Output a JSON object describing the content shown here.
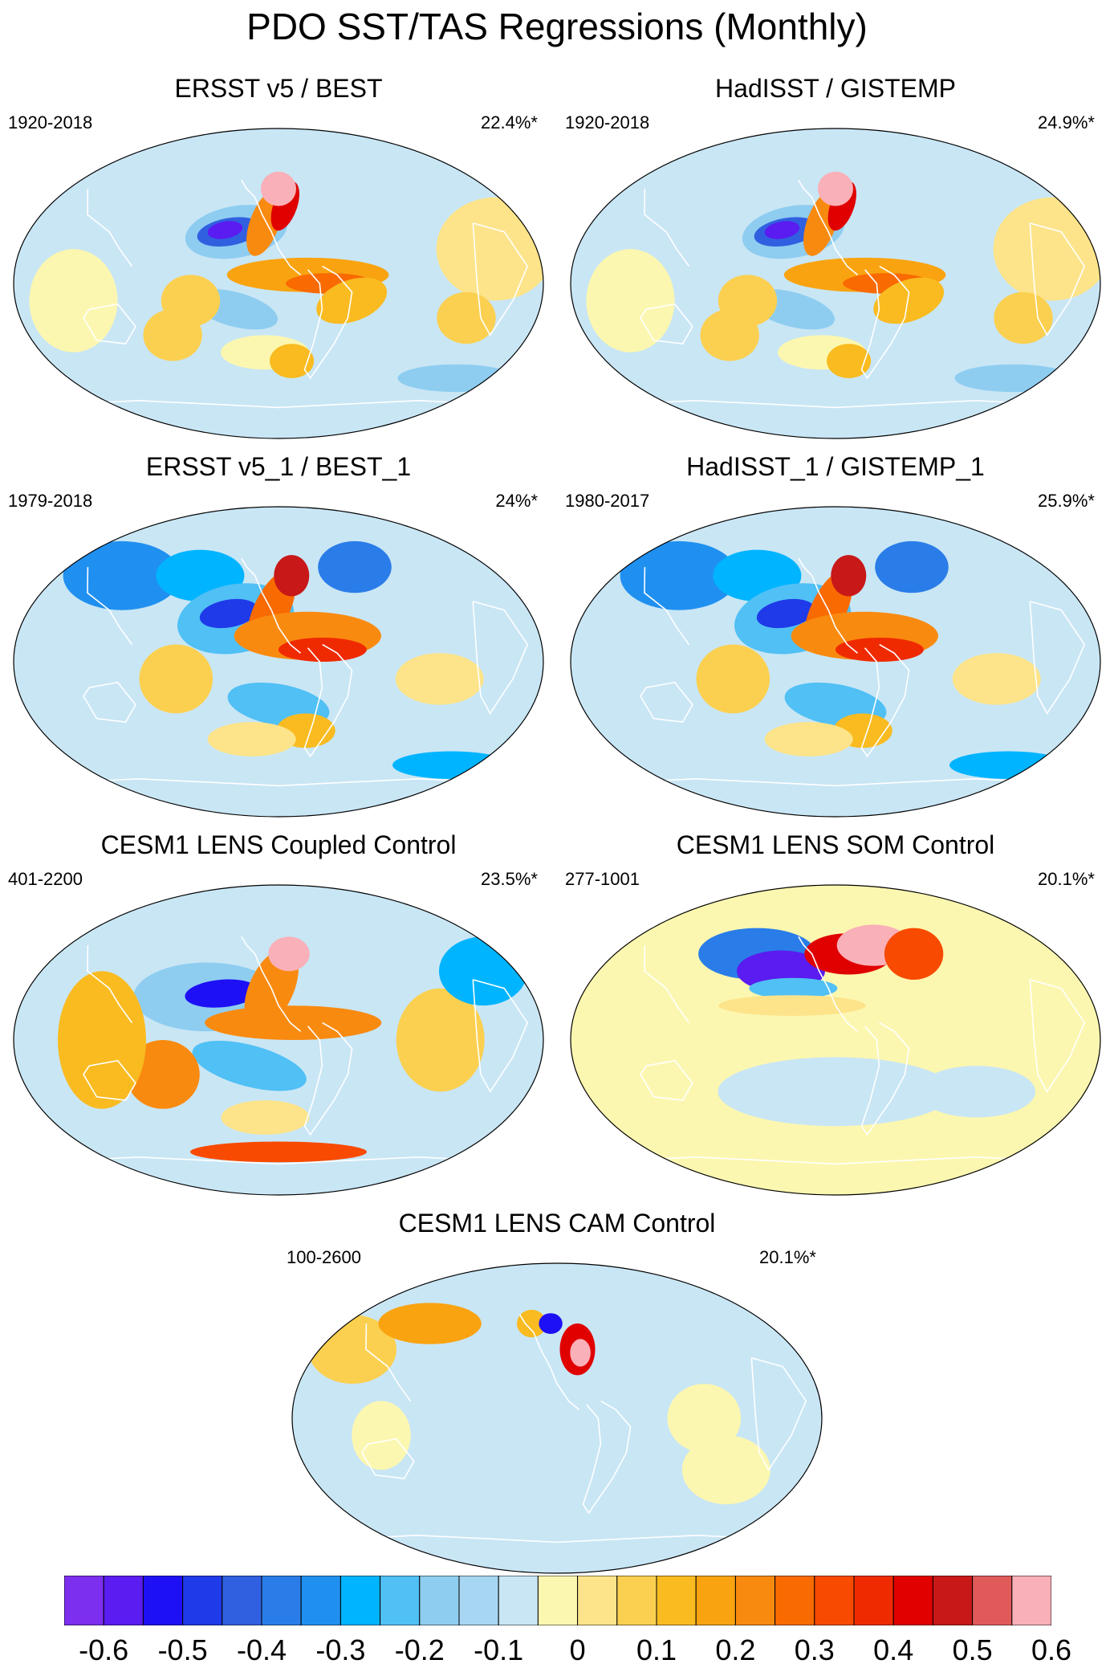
{
  "title": "PDO SST/TAS Regressions (Monthly)",
  "panels": [
    {
      "id": "p1",
      "title": "ERSST v5 / BEST",
      "years": "1920-2018",
      "percent": "22.4%*",
      "pattern": "observed"
    },
    {
      "id": "p2",
      "title": "HadISST / GISTEMP",
      "years": "1920-2018",
      "percent": "24.9%*",
      "pattern": "observed"
    },
    {
      "id": "p3",
      "title": "ERSST v5_1 / BEST_1",
      "years": "1979-2018",
      "percent": "24%*",
      "pattern": "recent"
    },
    {
      "id": "p4",
      "title": "HadISST_1 / GISTEMP_1",
      "years": "1980-2017",
      "percent": "25.9%*",
      "pattern": "recent"
    },
    {
      "id": "p5",
      "title": "CESM1 LENS Coupled Control",
      "years": "401-2200",
      "percent": "23.5%*",
      "pattern": "coupled"
    },
    {
      "id": "p6",
      "title": "CESM1 LENS SOM Control",
      "years": "277-1001",
      "percent": "20.1%*",
      "pattern": "som"
    },
    {
      "id": "p7",
      "title": "CESM1 LENS CAM Control",
      "years": "100-2600",
      "percent": "20.1%*",
      "pattern": "cam"
    }
  ],
  "colorbar": {
    "colors": [
      "#7d2ff0",
      "#5a1cf0",
      "#1e10f5",
      "#1f3ae8",
      "#3060e0",
      "#2a7de8",
      "#2090f0",
      "#00b4ff",
      "#50c0f5",
      "#8ecdf0",
      "#a6d6f2",
      "#c9e6f5",
      "#fcf7b0",
      "#fde48a",
      "#fbd050",
      "#f9bb20",
      "#f9a310",
      "#f98a10",
      "#f96a00",
      "#f84a00",
      "#f02a00",
      "#e00000",
      "#c81818",
      "#e05a5a",
      "#f9b0b8"
    ],
    "tick_labels": [
      "-0.6",
      "-0.5",
      "-0.4",
      "-0.3",
      "-0.2",
      "-0.1",
      "0",
      "0.1",
      "0.2",
      "0.3",
      "0.4",
      "0.5",
      "0.6"
    ]
  }
}
